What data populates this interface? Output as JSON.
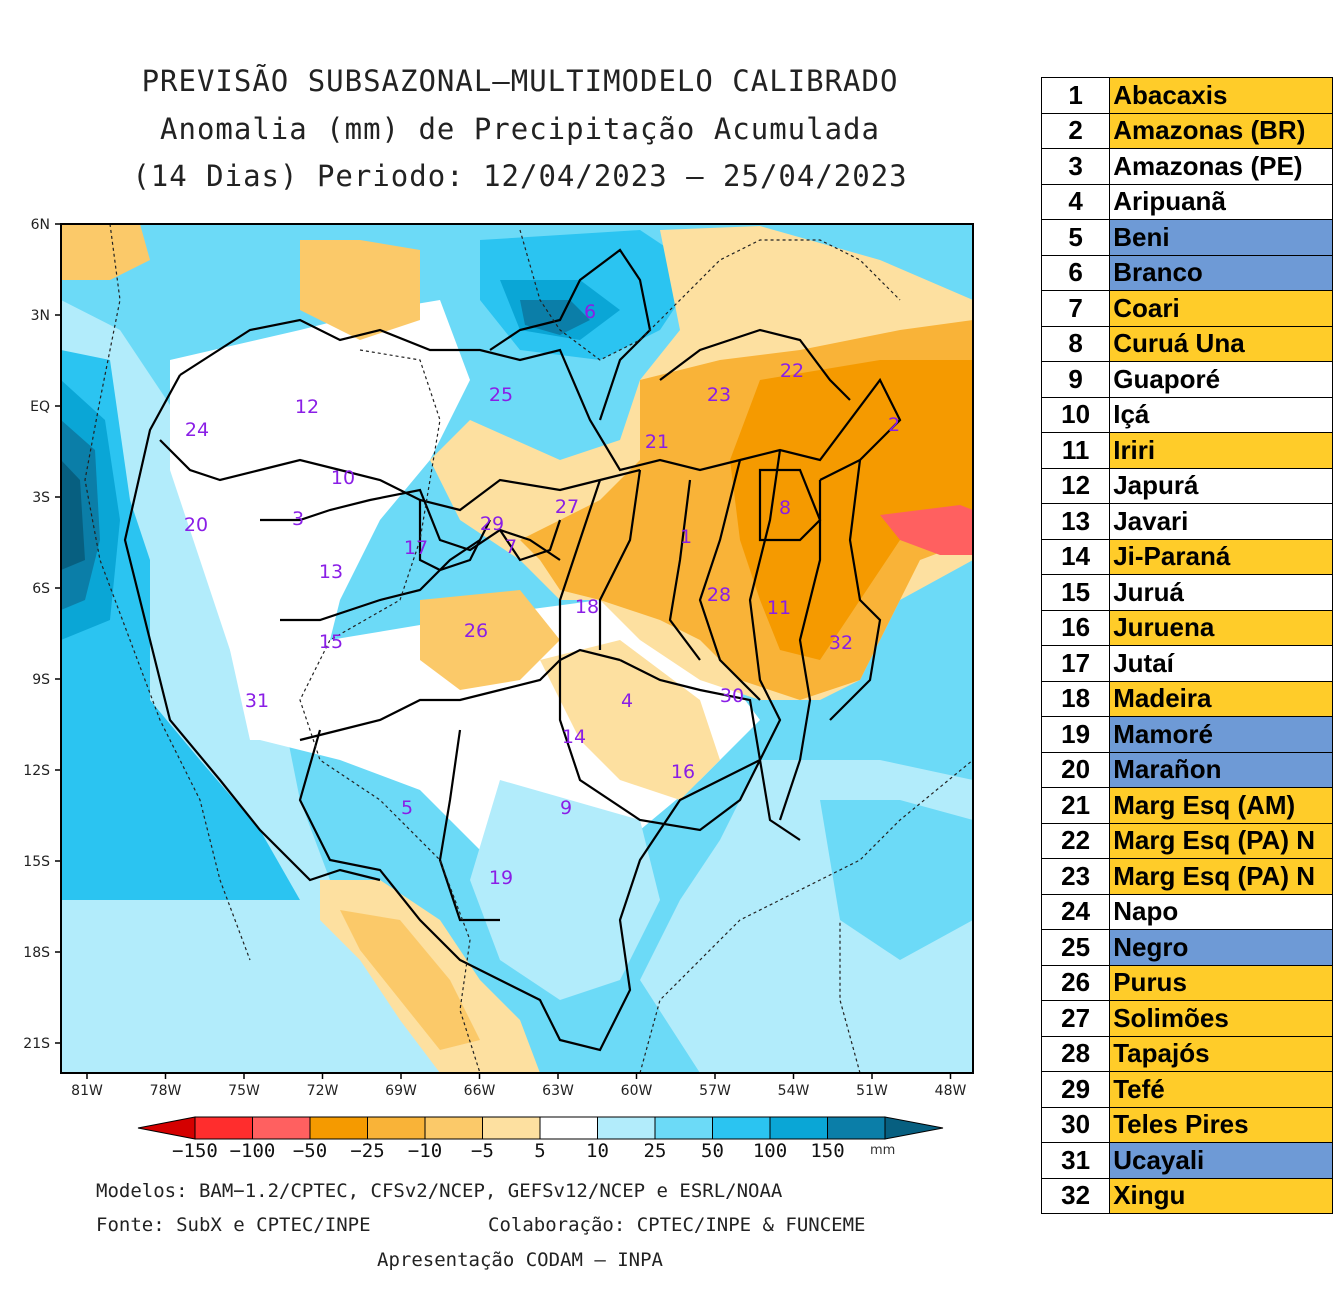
{
  "title": {
    "line1": "PREVISÃO SUBSAZONAL—MULTIMODELO CALIBRADO",
    "line2": "Anomalia (mm) de Precipitação Acumulada",
    "line3": "(14 Dias) Periodo: 12/04/2023 — 25/04/2023"
  },
  "map": {
    "lat_labels": [
      "6N",
      "3N",
      "EQ",
      "3S",
      "6S",
      "9S",
      "12S",
      "15S",
      "18S",
      "21S"
    ],
    "lon_labels": [
      "81W",
      "78W",
      "75W",
      "72W",
      "69W",
      "66W",
      "63W",
      "60W",
      "57W",
      "54W",
      "51W",
      "48W"
    ],
    "basin_numbers": [
      "1",
      "2",
      "3",
      "4",
      "5",
      "6",
      "7",
      "8",
      "9",
      "10",
      "11",
      "12",
      "13",
      "14",
      "15",
      "16",
      "17",
      "18",
      "19",
      "20",
      "21",
      "22",
      "23",
      "24",
      "25",
      "26",
      "27",
      "28",
      "29",
      "30",
      "31",
      "32"
    ]
  },
  "colorbar": {
    "labels": [
      "−150",
      "−100",
      "−50",
      "−25",
      "−10",
      "−5",
      "5",
      "10",
      "25",
      "50",
      "100",
      "150"
    ],
    "unit": "mm",
    "colors": [
      "#d40000",
      "#ff2d2d",
      "#ff6060",
      "#f59a00",
      "#f9b338",
      "#fbc969",
      "#fde0a0",
      "#ffffff",
      "#b2ecfb",
      "#6cdaf7",
      "#2bc4f1",
      "#0aa6d6",
      "#0b7ea8",
      "#075f80"
    ]
  },
  "credits": {
    "line1": "Modelos: BAM−1.2/CPTEC, CFSv2/NCEP, GEFSv12/NCEP e ESRL/NOAA",
    "line2a": "Fonte: SubX e CPTEC/INPE",
    "line2b": "Colaboração: CPTEC/INPE & FUNCEME",
    "line3": "Apresentação CODAM — INPA"
  },
  "legend": [
    {
      "num": "1",
      "name": "Abacaxis",
      "color": "yellow"
    },
    {
      "num": "2",
      "name": "Amazonas (BR)",
      "color": "yellow"
    },
    {
      "num": "3",
      "name": "Amazonas (PE)",
      "color": "white"
    },
    {
      "num": "4",
      "name": "Aripuanã",
      "color": "white"
    },
    {
      "num": "5",
      "name": "Beni",
      "color": "blue"
    },
    {
      "num": "6",
      "name": "Branco",
      "color": "blue"
    },
    {
      "num": "7",
      "name": "Coari",
      "color": "yellow"
    },
    {
      "num": "8",
      "name": "Curuá Una",
      "color": "yellow"
    },
    {
      "num": "9",
      "name": "Guaporé",
      "color": "white"
    },
    {
      "num": "10",
      "name": "Içá",
      "color": "white"
    },
    {
      "num": "11",
      "name": "Iriri",
      "color": "yellow"
    },
    {
      "num": "12",
      "name": "Japurá",
      "color": "white"
    },
    {
      "num": "13",
      "name": "Javari",
      "color": "white"
    },
    {
      "num": "14",
      "name": "Ji-Paraná",
      "color": "yellow"
    },
    {
      "num": "15",
      "name": "Juruá",
      "color": "white"
    },
    {
      "num": "16",
      "name": "Juruena",
      "color": "yellow"
    },
    {
      "num": "17",
      "name": "Jutaí",
      "color": "white"
    },
    {
      "num": "18",
      "name": "Madeira",
      "color": "yellow"
    },
    {
      "num": "19",
      "name": "Mamoré",
      "color": "blue"
    },
    {
      "num": "20",
      "name": "Marañon",
      "color": "blue"
    },
    {
      "num": "21",
      "name": "Marg Esq (AM)",
      "color": "yellow"
    },
    {
      "num": "22",
      "name": "Marg Esq (PA) N",
      "color": "yellow"
    },
    {
      "num": "23",
      "name": "Marg Esq (PA) N",
      "color": "yellow"
    },
    {
      "num": "24",
      "name": "Napo",
      "color": "white"
    },
    {
      "num": "25",
      "name": "Negro",
      "color": "blue"
    },
    {
      "num": "26",
      "name": "Purus",
      "color": "yellow"
    },
    {
      "num": "27",
      "name": "Solimões",
      "color": "yellow"
    },
    {
      "num": "28",
      "name": "Tapajós",
      "color": "yellow"
    },
    {
      "num": "29",
      "name": "Tefé",
      "color": "yellow"
    },
    {
      "num": "30",
      "name": "Teles Pires",
      "color": "yellow"
    },
    {
      "num": "31",
      "name": "Ucayali",
      "color": "blue"
    },
    {
      "num": "32",
      "name": "Xingu",
      "color": "yellow"
    }
  ]
}
